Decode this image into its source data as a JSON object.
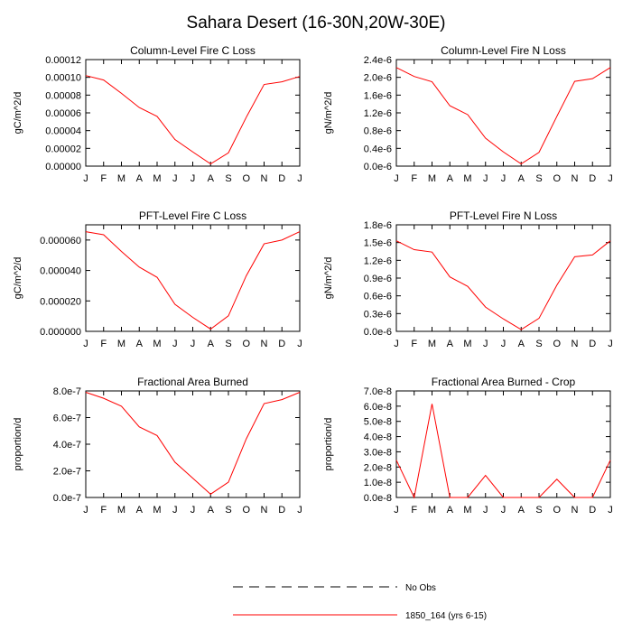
{
  "title": "Sahara Desert (16-30N,20W-30E)",
  "months": [
    "J",
    "F",
    "M",
    "A",
    "M",
    "J",
    "J",
    "A",
    "S",
    "O",
    "N",
    "D",
    "J"
  ],
  "legend": [
    {
      "label": "No Obs",
      "color": "#000000",
      "dash": "dashed"
    },
    {
      "label": "1850_164 (yrs 6-15)",
      "color": "#ff0000",
      "dash": "solid"
    }
  ],
  "chart_data": [
    {
      "type": "line",
      "title": "Column-Level Fire C Loss",
      "ylabel": "gC/m^2/d",
      "ylim": [
        0,
        0.00012
      ],
      "yticks": [
        0,
        2e-05,
        4e-05,
        6e-05,
        8e-05,
        0.0001,
        0.00012
      ],
      "ytick_labels": [
        "0.00000",
        "0.00002",
        "0.00004",
        "0.00006",
        "0.00008",
        "0.00010",
        "0.00012"
      ],
      "categories": [
        "J",
        "F",
        "M",
        "A",
        "M",
        "J",
        "J",
        "A",
        "S",
        "O",
        "N",
        "D",
        "J"
      ],
      "series": [
        {
          "name": "1850_164 (yrs 6-15)",
          "color": "#ff0000",
          "values": [
            0.000102,
            9.7e-05,
            8.2e-05,
            6.6e-05,
            5.6e-05,
            3e-05,
            1.6e-05,
            2.5e-06,
            1.5e-05,
            5.5e-05,
            9.2e-05,
            9.5e-05,
            0.000101
          ]
        }
      ]
    },
    {
      "type": "line",
      "title": "Column-Level Fire N Loss",
      "ylabel": "gN/m^2/d",
      "ylim": [
        0,
        2.4e-06
      ],
      "yticks": [
        0,
        4e-07,
        8e-07,
        1.2e-06,
        1.6e-06,
        2e-06,
        2.4e-06
      ],
      "ytick_labels": [
        "0.0e-6",
        "0.4e-6",
        "0.8e-6",
        "1.2e-6",
        "1.6e-6",
        "2.0e-6",
        "2.4e-6"
      ],
      "categories": [
        "J",
        "F",
        "M",
        "A",
        "M",
        "J",
        "J",
        "A",
        "S",
        "O",
        "N",
        "D",
        "J"
      ],
      "series": [
        {
          "name": "1850_164 (yrs 6-15)",
          "color": "#ff0000",
          "values": [
            2.22e-06,
            2.02e-06,
            1.9e-06,
            1.36e-06,
            1.16e-06,
            6.3e-07,
            3.2e-07,
            5e-08,
            3.1e-07,
            1.12e-06,
            1.91e-06,
            1.97e-06,
            2.22e-06
          ]
        }
      ]
    },
    {
      "type": "line",
      "title": "PFT-Level Fire C Loss",
      "ylabel": "gC/m^2/d",
      "ylim": [
        0,
        7e-05
      ],
      "yticks": [
        0,
        2e-05,
        4e-05,
        6e-05
      ],
      "ytick_labels": [
        "0.000000",
        "0.000020",
        "0.000040",
        "0.000060"
      ],
      "categories": [
        "J",
        "F",
        "M",
        "A",
        "M",
        "J",
        "J",
        "A",
        "S",
        "O",
        "N",
        "D",
        "J"
      ],
      "series": [
        {
          "name": "1850_164 (yrs 6-15)",
          "color": "#ff0000",
          "values": [
            6.55e-05,
            6.35e-05,
            5.25e-05,
            4.22e-05,
            3.55e-05,
            1.78e-05,
            9.2e-06,
            1.5e-06,
            1.02e-05,
            3.65e-05,
            5.75e-05,
            6e-05,
            6.55e-05
          ]
        }
      ]
    },
    {
      "type": "line",
      "title": "PFT-Level Fire N Loss",
      "ylabel": "gN/m^2/d",
      "ylim": [
        0,
        1.8e-06
      ],
      "yticks": [
        0,
        3e-07,
        6e-07,
        9e-07,
        1.2e-06,
        1.5e-06,
        1.8e-06
      ],
      "ytick_labels": [
        "0.0e-6",
        "0.3e-6",
        "0.6e-6",
        "0.9e-6",
        "1.2e-6",
        "1.5e-6",
        "1.8e-6"
      ],
      "categories": [
        "J",
        "F",
        "M",
        "A",
        "M",
        "J",
        "J",
        "A",
        "S",
        "O",
        "N",
        "D",
        "J"
      ],
      "series": [
        {
          "name": "1850_164 (yrs 6-15)",
          "color": "#ff0000",
          "values": [
            1.53e-06,
            1.38e-06,
            1.34e-06,
            9.2e-07,
            7.6e-07,
            4.1e-07,
            2.1e-07,
            3e-08,
            2.2e-07,
            7.8e-07,
            1.26e-06,
            1.29e-06,
            1.53e-06
          ]
        }
      ]
    },
    {
      "type": "line",
      "title": "Fractional Area Burned",
      "ylabel": "proportion/d",
      "ylim": [
        0,
        8e-07
      ],
      "yticks": [
        0,
        2e-07,
        4e-07,
        6e-07,
        8e-07
      ],
      "ytick_labels": [
        "0.0e-7",
        "2.0e-7",
        "4.0e-7",
        "6.0e-7",
        "8.0e-7"
      ],
      "categories": [
        "J",
        "F",
        "M",
        "A",
        "M",
        "J",
        "J",
        "A",
        "S",
        "O",
        "N",
        "D",
        "J"
      ],
      "series": [
        {
          "name": "1850_164 (yrs 6-15)",
          "color": "#ff0000",
          "values": [
            7.9e-07,
            7.45e-07,
            6.85e-07,
            5.3e-07,
            4.65e-07,
            2.65e-07,
            1.45e-07,
            2.5e-08,
            1.15e-07,
            4.4e-07,
            7.05e-07,
            7.35e-07,
            7.9e-07
          ]
        }
      ]
    },
    {
      "type": "line",
      "title": "Fractional Area Burned - Crop",
      "ylabel": "proportion/d",
      "ylim": [
        0,
        7e-08
      ],
      "yticks": [
        0,
        1e-08,
        2e-08,
        3e-08,
        4e-08,
        5e-08,
        6e-08,
        7e-08
      ],
      "ytick_labels": [
        "0.0e-8",
        "1.0e-8",
        "2.0e-8",
        "3.0e-8",
        "4.0e-8",
        "5.0e-8",
        "6.0e-8",
        "7.0e-8"
      ],
      "categories": [
        "J",
        "F",
        "M",
        "A",
        "M",
        "J",
        "J",
        "A",
        "S",
        "O",
        "N",
        "D",
        "J"
      ],
      "series": [
        {
          "name": "1850_164 (yrs 6-15)",
          "color": "#ff0000",
          "values": [
            2.45e-08,
            0,
            6.15e-08,
            0,
            0,
            1.45e-08,
            0,
            0,
            0,
            1.2e-08,
            0,
            0,
            2.45e-08
          ]
        }
      ]
    }
  ]
}
